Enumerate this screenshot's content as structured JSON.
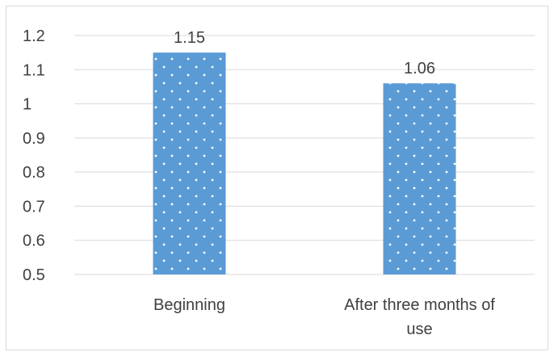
{
  "chart_data": {
    "type": "bar",
    "categories": [
      "Beginning",
      "After three months of use"
    ],
    "category_lines": [
      [
        "Beginning"
      ],
      [
        "After three months of",
        "use"
      ]
    ],
    "values": [
      1.15,
      1.06
    ],
    "data_labels": [
      "1.15",
      "1.06"
    ],
    "ylim": [
      0.5,
      1.2
    ],
    "yticks": [
      "0.5",
      "0.6",
      "0.7",
      "0.8",
      "0.9",
      "1",
      "1.1",
      "1.2"
    ],
    "title": "",
    "xlabel": "",
    "ylabel": "",
    "grid": true,
    "legend": "none",
    "bar_color": "#5b9bd5",
    "bar_pattern": "white-dots",
    "gridline_color": "#d9d9d9",
    "text_color": "#404040"
  }
}
